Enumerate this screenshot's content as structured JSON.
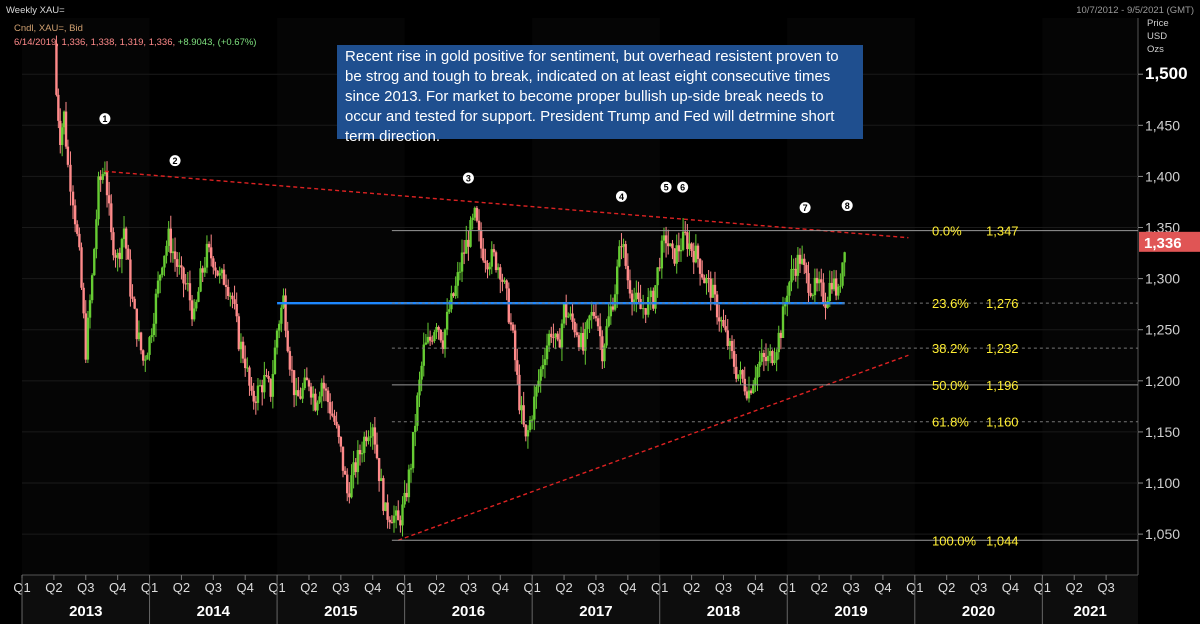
{
  "header": {
    "title": "Weekly XAU=",
    "date_range": "10/7/2012 - 9/5/2021 (GMT)",
    "instrument": "Cndl, XAU=, Bid",
    "ohlc": "6/14/2019, 1,336, 1,338, 1,319, 1,336,",
    "change": "+8.9043, (+0.67%)"
  },
  "axis": {
    "unit_lines": [
      "Price",
      "USD",
      "Ozs"
    ],
    "last_price_label": "1,336"
  },
  "annotation": "Recent rise in gold positive for sentiment, but overhead resistent proven to be strog and tough to break, indicated on at least eight consecutive times since 2013. For market to become proper bullish up-side break needs to occur and tested for support. President Trump and Fed will detrmine short term direction.",
  "colors": {
    "background": "#000000",
    "up_candle": "#66cc33",
    "down_candle": "#ff8a8a",
    "resistance_line": "#dd2222",
    "support_level": "#1e88ff",
    "fib_text": "#ffee33",
    "last_price_bg": "#e05555",
    "year_band": "#262626"
  },
  "chart_data": {
    "type": "candlestick",
    "title": "Weekly XAU=",
    "ylabel": "Price USD Ozs",
    "ylim": [
      1010,
      1555
    ],
    "yticks": [
      "1,050",
      "1,100",
      "1,150",
      "1,200",
      "1,250",
      "1,300",
      "1,350",
      "1,400",
      "1,450",
      "1,500"
    ],
    "ytick_values": [
      1050,
      1100,
      1150,
      1200,
      1250,
      1300,
      1350,
      1400,
      1450,
      1500
    ],
    "x_quarters": [
      "Q1",
      "Q2",
      "Q3",
      "Q4",
      "Q1",
      "Q2",
      "Q3",
      "Q4",
      "Q1",
      "Q2",
      "Q3",
      "Q4",
      "Q1",
      "Q2",
      "Q3",
      "Q4",
      "Q1",
      "Q2",
      "Q3",
      "Q4",
      "Q1",
      "Q2",
      "Q3",
      "Q4",
      "Q1",
      "Q2",
      "Q3",
      "Q4",
      "Q1",
      "Q2",
      "Q3",
      "Q4",
      "Q1",
      "Q2",
      "Q3"
    ],
    "x_years": [
      "2013",
      "2014",
      "2015",
      "2016",
      "2017",
      "2018",
      "2019",
      "2020",
      "2021"
    ],
    "close_path": [
      [
        2013.25,
        1530
      ],
      [
        2013.27,
        1480
      ],
      [
        2013.3,
        1440
      ],
      [
        2013.33,
        1460
      ],
      [
        2013.36,
        1410
      ],
      [
        2013.4,
        1380
      ],
      [
        2013.45,
        1320
      ],
      [
        2013.5,
        1230
      ],
      [
        2013.55,
        1300
      ],
      [
        2013.6,
        1390
      ],
      [
        2013.65,
        1410
      ],
      [
        2013.7,
        1340
      ],
      [
        2013.75,
        1320
      ],
      [
        2013.8,
        1350
      ],
      [
        2013.85,
        1290
      ],
      [
        2013.9,
        1250
      ],
      [
        2013.95,
        1220
      ],
      [
        2014.0,
        1240
      ],
      [
        2014.05,
        1280
      ],
      [
        2014.1,
        1320
      ],
      [
        2014.15,
        1340
      ],
      [
        2014.2,
        1320
      ],
      [
        2014.25,
        1300
      ],
      [
        2014.3,
        1290
      ],
      [
        2014.35,
        1260
      ],
      [
        2014.4,
        1300
      ],
      [
        2014.45,
        1325
      ],
      [
        2014.5,
        1320
      ],
      [
        2014.55,
        1300
      ],
      [
        2014.6,
        1300
      ],
      [
        2014.65,
        1280
      ],
      [
        2014.7,
        1240
      ],
      [
        2014.75,
        1220
      ],
      [
        2014.8,
        1180
      ],
      [
        2014.85,
        1190
      ],
      [
        2014.9,
        1200
      ],
      [
        2014.95,
        1190
      ],
      [
        2015.0,
        1250
      ],
      [
        2015.05,
        1280
      ],
      [
        2015.1,
        1220
      ],
      [
        2015.15,
        1180
      ],
      [
        2015.2,
        1190
      ],
      [
        2015.25,
        1200
      ],
      [
        2015.3,
        1180
      ],
      [
        2015.35,
        1200
      ],
      [
        2015.4,
        1180
      ],
      [
        2015.45,
        1160
      ],
      [
        2015.5,
        1130
      ],
      [
        2015.55,
        1090
      ],
      [
        2015.6,
        1110
      ],
      [
        2015.65,
        1130
      ],
      [
        2015.7,
        1150
      ],
      [
        2015.75,
        1160
      ],
      [
        2015.8,
        1110
      ],
      [
        2015.85,
        1070
      ],
      [
        2015.9,
        1070
      ],
      [
        2015.95,
        1060
      ],
      [
        2016.0,
        1080
      ],
      [
        2016.05,
        1120
      ],
      [
        2016.1,
        1180
      ],
      [
        2016.15,
        1230
      ],
      [
        2016.2,
        1240
      ],
      [
        2016.25,
        1260
      ],
      [
        2016.3,
        1240
      ],
      [
        2016.35,
        1270
      ],
      [
        2016.4,
        1290
      ],
      [
        2016.45,
        1320
      ],
      [
        2016.5,
        1340
      ],
      [
        2016.55,
        1360
      ],
      [
        2016.6,
        1330
      ],
      [
        2016.65,
        1320
      ],
      [
        2016.7,
        1320
      ],
      [
        2016.75,
        1310
      ],
      [
        2016.8,
        1280
      ],
      [
        2016.85,
        1240
      ],
      [
        2016.9,
        1180
      ],
      [
        2016.95,
        1140
      ],
      [
        2017.0,
        1170
      ],
      [
        2017.05,
        1200
      ],
      [
        2017.1,
        1230
      ],
      [
        2017.15,
        1250
      ],
      [
        2017.2,
        1230
      ],
      [
        2017.25,
        1270
      ],
      [
        2017.3,
        1260
      ],
      [
        2017.35,
        1250
      ],
      [
        2017.4,
        1230
      ],
      [
        2017.45,
        1260
      ],
      [
        2017.5,
        1270
      ],
      [
        2017.55,
        1230
      ],
      [
        2017.6,
        1260
      ],
      [
        2017.65,
        1290
      ],
      [
        2017.7,
        1340
      ],
      [
        2017.75,
        1300
      ],
      [
        2017.8,
        1280
      ],
      [
        2017.85,
        1270
      ],
      [
        2017.95,
        1280
      ],
      [
        2018.0,
        1320
      ],
      [
        2018.05,
        1340
      ],
      [
        2018.1,
        1320
      ],
      [
        2018.15,
        1330
      ],
      [
        2018.2,
        1340
      ],
      [
        2018.25,
        1330
      ],
      [
        2018.3,
        1320
      ],
      [
        2018.35,
        1300
      ],
      [
        2018.4,
        1290
      ],
      [
        2018.45,
        1270
      ],
      [
        2018.5,
        1250
      ],
      [
        2018.55,
        1230
      ],
      [
        2018.6,
        1210
      ],
      [
        2018.65,
        1200
      ],
      [
        2018.7,
        1190
      ],
      [
        2018.75,
        1210
      ],
      [
        2018.8,
        1220
      ],
      [
        2018.85,
        1220
      ],
      [
        2018.9,
        1230
      ],
      [
        2018.95,
        1250
      ],
      [
        2019.0,
        1290
      ],
      [
        2019.05,
        1310
      ],
      [
        2019.1,
        1320
      ],
      [
        2019.15,
        1300
      ],
      [
        2019.2,
        1290
      ],
      [
        2019.25,
        1290
      ],
      [
        2019.3,
        1280
      ],
      [
        2019.35,
        1300
      ],
      [
        2019.4,
        1283
      ],
      [
        2019.45,
        1336
      ]
    ],
    "peaks": [
      {
        "label": "1",
        "x": 2013.65,
        "y": 1433
      },
      {
        "label": "2",
        "x": 2014.2,
        "y": 1392
      },
      {
        "label": "3",
        "x": 2016.5,
        "y": 1375
      },
      {
        "label": "4",
        "x": 2017.7,
        "y": 1357
      },
      {
        "label": "5",
        "x": 2018.05,
        "y": 1366
      },
      {
        "label": "6",
        "x": 2018.18,
        "y": 1366
      },
      {
        "label": "7",
        "x": 2019.14,
        "y": 1346
      },
      {
        "label": "8",
        "x": 2019.47,
        "y": 1348
      }
    ],
    "resistance_line": [
      [
        2013.65,
        1405
      ],
      [
        2019.95,
        1340
      ]
    ],
    "support_line": [
      [
        2015.95,
        1044
      ],
      [
        2019.95,
        1225
      ]
    ],
    "support_level": {
      "y": 1276,
      "x_start": 2015.0,
      "x_end": 2019.45
    },
    "fib_levels": [
      {
        "label": "0.0%",
        "value_label": "1,347",
        "y": 1347
      },
      {
        "label": "23.6%",
        "value_label": "1,276",
        "y": 1276
      },
      {
        "label": "38.2%",
        "value_label": "1,232",
        "y": 1232
      },
      {
        "label": "50.0%",
        "value_label": "1,196",
        "y": 1196
      },
      {
        "label": "61.8%",
        "value_label": "1,160",
        "y": 1160
      },
      {
        "label": "100.0%",
        "value_label": "1,044",
        "y": 1044
      }
    ],
    "last_price": 1336
  }
}
